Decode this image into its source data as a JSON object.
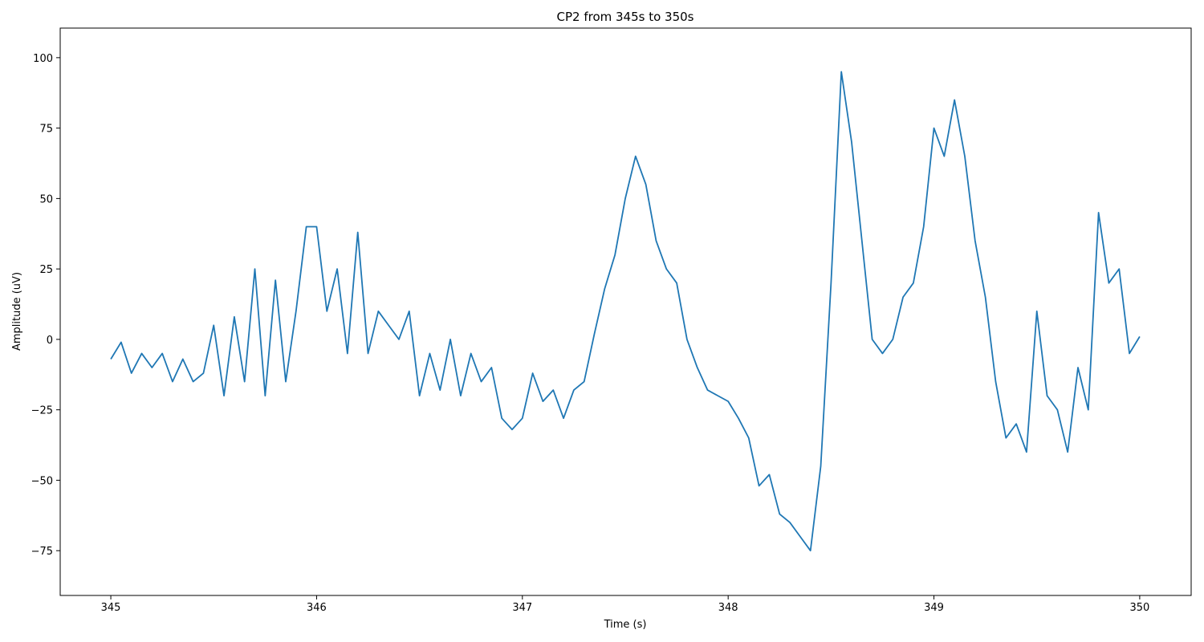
{
  "chart_data": {
    "type": "line",
    "title": "CP2 from 345s to 350s",
    "x_label": "Time (s)",
    "y_label": "Amplitude (uV)",
    "x": [
      345.0,
      345.05,
      345.1,
      345.15,
      345.2,
      345.25,
      345.3,
      345.35,
      345.4,
      345.45,
      345.5,
      345.55,
      345.6,
      345.65,
      345.7,
      345.75,
      345.8,
      345.85,
      345.9,
      345.95,
      346.0,
      346.05,
      346.1,
      346.15,
      346.2,
      346.25,
      346.3,
      346.35,
      346.4,
      346.45,
      346.5,
      346.55,
      346.6,
      346.65,
      346.7,
      346.75,
      346.8,
      346.85,
      346.9,
      346.95,
      347.0,
      347.05,
      347.1,
      347.15,
      347.2,
      347.25,
      347.3,
      347.35,
      347.4,
      347.45,
      347.5,
      347.55,
      347.6,
      347.65,
      347.7,
      347.75,
      347.8,
      347.85,
      347.9,
      347.95,
      348.0,
      348.05,
      348.1,
      348.15,
      348.2,
      348.25,
      348.3,
      348.35,
      348.4,
      348.45,
      348.5,
      348.55,
      348.6,
      348.65,
      348.7,
      348.75,
      348.8,
      348.85,
      348.9,
      348.95,
      349.0,
      349.05,
      349.1,
      349.15,
      349.2,
      349.25,
      349.3,
      349.35,
      349.4,
      349.45,
      349.5,
      349.55,
      349.6,
      349.65,
      349.7,
      349.75,
      349.8,
      349.85,
      349.9,
      349.95,
      350.0
    ],
    "series": [
      {
        "name": "CP2",
        "color": "#1f77b4",
        "values": [
          -7,
          -1,
          -12,
          -5,
          -10,
          -5,
          -15,
          -7,
          -15,
          -12,
          5,
          -20,
          8,
          -15,
          25,
          -20,
          21,
          -15,
          10,
          40,
          40,
          10,
          25,
          -5,
          38,
          -5,
          10,
          5,
          0,
          10,
          -20,
          -5,
          -18,
          0,
          -20,
          -5,
          -15,
          -10,
          -28,
          -32,
          -28,
          -12,
          -22,
          -18,
          -28,
          -18,
          -15,
          2,
          18,
          30,
          50,
          65,
          55,
          35,
          25,
          20,
          0,
          -10,
          -18,
          -20,
          -22,
          -28,
          -35,
          -52,
          -48,
          -62,
          -65,
          -70,
          -75,
          -45,
          20,
          95,
          70,
          35,
          0,
          -5,
          0,
          15,
          20,
          40,
          75,
          65,
          85,
          65,
          35,
          15,
          -15,
          -35,
          -30,
          -40,
          10,
          -20,
          -25,
          -40,
          -10,
          -25,
          45,
          20,
          25,
          -5,
          1
        ]
      }
    ],
    "xlim": [
      344.754,
      350.25
    ],
    "ylim": [
      -90.9,
      110.5
    ],
    "xticks": [
      345,
      346,
      347,
      348,
      349,
      350
    ],
    "yticks": [
      {
        "value": -75,
        "label": "−75"
      },
      {
        "value": -50,
        "label": "−50"
      },
      {
        "value": -25,
        "label": "−25"
      },
      0,
      25,
      50,
      75,
      100
    ]
  }
}
